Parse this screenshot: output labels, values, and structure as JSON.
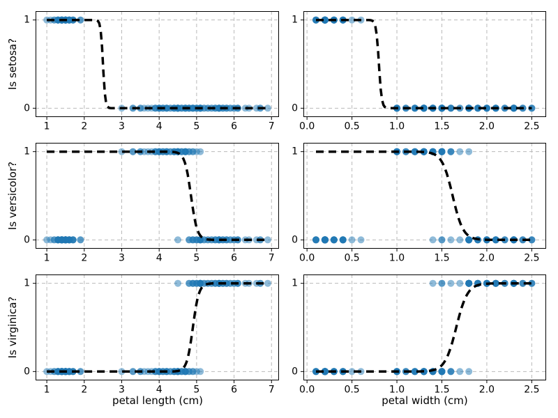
{
  "figure": {
    "background": "#ffffff"
  },
  "style": {
    "dot_color": "#1f77b4",
    "dot_alpha": 0.5,
    "dot_radius": 5,
    "curve_color": "#000000",
    "curve_width": 3.5,
    "curve_dash": "11 7",
    "grid_color": "#b9b9b9",
    "grid_dash": "5 4",
    "axis_color": "#000000",
    "tick_label_color": "#000000",
    "tick_font_px": 14
  },
  "chart_data": {
    "type": "scatter",
    "title": "",
    "layout": {
      "rows": 3,
      "cols": 2,
      "grid": true,
      "legend": false
    },
    "ylim": [
      -0.1,
      1.1
    ],
    "yticks": [
      0,
      1
    ],
    "ytick_labels": [
      "0",
      "1"
    ],
    "rows": [
      {
        "positive_class": "setosa",
        "ylabel": "Is setosa?"
      },
      {
        "positive_class": "versicolor",
        "ylabel": "Is versicolor?"
      },
      {
        "positive_class": "virginica",
        "ylabel": "Is virginica?"
      }
    ],
    "columns": [
      {
        "feature": "petal_length",
        "xlabel": "petal length (cm)",
        "xlim": [
          0.7,
          7.2
        ],
        "xticks": [
          1,
          2,
          3,
          4,
          5,
          6,
          7
        ],
        "xtick_labels": [
          "1",
          "2",
          "3",
          "4",
          "5",
          "6",
          "7"
        ],
        "curve_range": [
          1.0,
          6.9
        ]
      },
      {
        "feature": "petal_width",
        "xlabel": "petal width (cm)",
        "xlim": [
          -0.04,
          2.66
        ],
        "xticks": [
          0,
          0.5,
          1,
          1.5,
          2,
          2.5
        ],
        "xtick_labels": [
          "0.0",
          "0.5",
          "1.0",
          "1.5",
          "2.0",
          "2.5"
        ],
        "curve_range": [
          0.1,
          2.5
        ]
      }
    ],
    "curves": {
      "setosa": {
        "petal_length": {
          "x0": 2.5,
          "k": -33
        },
        "petal_width": {
          "x0": 0.8,
          "k": -65
        }
      },
      "versicolor": {
        "petal_length": {
          "x0": 4.85,
          "k": -12
        },
        "petal_width": {
          "x0": 1.62,
          "k": -17
        }
      },
      "virginica": {
        "petal_length": {
          "x0": 4.9,
          "k": 12.5
        },
        "petal_width": {
          "x0": 1.66,
          "k": 16
        }
      }
    },
    "iris": {
      "setosa": {
        "petal_length": [
          1.4,
          1.4,
          1.3,
          1.5,
          1.4,
          1.7,
          1.4,
          1.5,
          1.4,
          1.5,
          1.5,
          1.6,
          1.4,
          1.1,
          1.2,
          1.5,
          1.3,
          1.4,
          1.7,
          1.5,
          1.7,
          1.5,
          1.0,
          1.7,
          1.9,
          1.6,
          1.6,
          1.5,
          1.4,
          1.6,
          1.6,
          1.5,
          1.5,
          1.4,
          1.5,
          1.2,
          1.3,
          1.4,
          1.3,
          1.5,
          1.3,
          1.3,
          1.3,
          1.6,
          1.9,
          1.4,
          1.6,
          1.4,
          1.5,
          1.4
        ],
        "petal_width": [
          0.2,
          0.2,
          0.2,
          0.2,
          0.2,
          0.4,
          0.3,
          0.2,
          0.2,
          0.1,
          0.2,
          0.2,
          0.1,
          0.1,
          0.2,
          0.4,
          0.4,
          0.3,
          0.3,
          0.3,
          0.2,
          0.4,
          0.2,
          0.5,
          0.2,
          0.2,
          0.4,
          0.2,
          0.2,
          0.2,
          0.2,
          0.4,
          0.1,
          0.2,
          0.2,
          0.2,
          0.2,
          0.1,
          0.2,
          0.2,
          0.3,
          0.3,
          0.2,
          0.6,
          0.4,
          0.3,
          0.2,
          0.2,
          0.2,
          0.2
        ]
      },
      "versicolor": {
        "petal_length": [
          4.7,
          4.5,
          4.9,
          4.0,
          4.6,
          4.5,
          4.7,
          3.3,
          4.6,
          3.9,
          3.5,
          4.2,
          4.0,
          4.7,
          3.6,
          4.4,
          4.5,
          4.1,
          4.5,
          3.9,
          4.8,
          4.0,
          4.9,
          4.7,
          4.3,
          4.4,
          4.8,
          5.0,
          4.5,
          3.5,
          3.8,
          3.7,
          3.9,
          5.1,
          4.5,
          4.5,
          4.7,
          4.4,
          4.1,
          4.0,
          4.4,
          4.6,
          4.0,
          3.3,
          4.2,
          4.2,
          4.2,
          4.3,
          3.0,
          4.1
        ],
        "petal_width": [
          1.4,
          1.5,
          1.5,
          1.3,
          1.5,
          1.3,
          1.6,
          1.0,
          1.3,
          1.4,
          1.0,
          1.5,
          1.0,
          1.4,
          1.3,
          1.4,
          1.5,
          1.0,
          1.5,
          1.1,
          1.8,
          1.3,
          1.5,
          1.2,
          1.3,
          1.4,
          1.4,
          1.7,
          1.5,
          1.0,
          1.1,
          1.0,
          1.2,
          1.6,
          1.5,
          1.6,
          1.5,
          1.3,
          1.3,
          1.3,
          1.2,
          1.4,
          1.2,
          1.0,
          1.3,
          1.2,
          1.3,
          1.3,
          1.1,
          1.3
        ]
      },
      "virginica": {
        "petal_length": [
          6.0,
          5.1,
          5.9,
          5.6,
          5.8,
          6.6,
          4.5,
          6.3,
          5.8,
          6.1,
          5.1,
          5.3,
          5.5,
          5.0,
          5.1,
          5.3,
          5.5,
          6.7,
          6.9,
          5.0,
          5.7,
          4.9,
          6.7,
          4.9,
          5.7,
          6.0,
          4.8,
          4.9,
          5.6,
          5.8,
          6.1,
          6.4,
          5.6,
          5.1,
          5.6,
          6.1,
          5.6,
          5.5,
          4.8,
          5.4,
          5.6,
          5.1,
          5.1,
          5.9,
          5.7,
          5.2,
          5.0,
          5.2,
          5.4,
          5.1
        ],
        "petal_width": [
          2.5,
          1.9,
          2.1,
          1.8,
          2.2,
          2.1,
          1.7,
          1.8,
          1.8,
          2.5,
          2.0,
          1.9,
          2.1,
          2.0,
          2.4,
          2.3,
          1.8,
          2.2,
          2.3,
          1.5,
          2.3,
          2.0,
          2.0,
          1.8,
          2.1,
          1.8,
          1.8,
          1.8,
          2.1,
          1.6,
          1.9,
          2.0,
          2.2,
          1.5,
          1.4,
          2.3,
          2.4,
          1.8,
          1.8,
          2.1,
          2.4,
          2.3,
          1.9,
          2.3,
          2.5,
          2.3,
          1.9,
          2.0,
          2.3,
          1.8
        ]
      }
    }
  }
}
